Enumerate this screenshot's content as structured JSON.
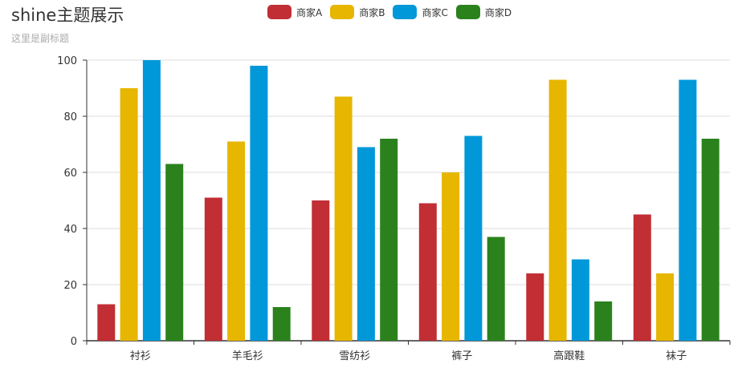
{
  "title": "shine主题展示",
  "subtitle": "这里是副标题",
  "legend": [
    {
      "name": "商家A",
      "color": "#c12e34"
    },
    {
      "name": "商家B",
      "color": "#e6b600"
    },
    {
      "name": "商家C",
      "color": "#0098d9"
    },
    {
      "name": "商家D",
      "color": "#2b821d"
    }
  ],
  "chart_data": {
    "type": "bar",
    "title": "shine主题展示",
    "subtitle": "这里是副标题",
    "categories": [
      "衬衫",
      "羊毛衫",
      "雪纺衫",
      "裤子",
      "高跟鞋",
      "袜子"
    ],
    "series": [
      {
        "name": "商家A",
        "color": "#c12e34",
        "values": [
          13,
          51,
          50,
          49,
          24,
          45
        ]
      },
      {
        "name": "商家B",
        "color": "#e6b600",
        "values": [
          90,
          71,
          87,
          60,
          93,
          24
        ]
      },
      {
        "name": "商家C",
        "color": "#0098d9",
        "values": [
          100,
          98,
          69,
          73,
          29,
          93
        ]
      },
      {
        "name": "商家D",
        "color": "#2b821d",
        "values": [
          63,
          12,
          72,
          37,
          14,
          72
        ]
      }
    ],
    "xlabel": "",
    "ylabel": "",
    "ylim": [
      0,
      100
    ],
    "yticks": [
      0,
      20,
      40,
      60,
      80,
      100
    ],
    "grid": true,
    "legend_position": "top-center"
  }
}
